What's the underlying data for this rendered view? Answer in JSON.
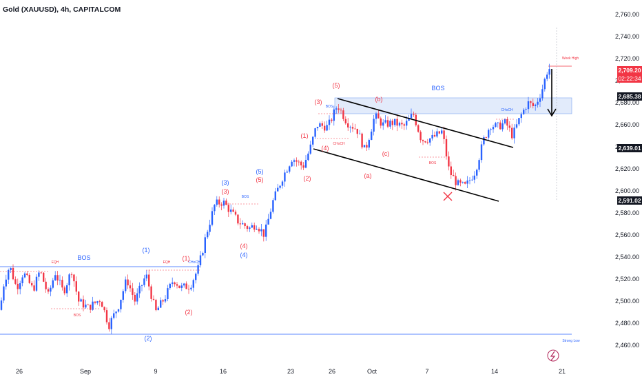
{
  "header": {
    "title": "Gold (XAUUSD), 4h, CAPITALCOM"
  },
  "colors": {
    "bull": "#2962ff",
    "bear": "#f23645",
    "line": "#000000",
    "zone": "#dbe7fb"
  },
  "price_tags": [
    {
      "label": "2,685.38",
      "value": 2685.38,
      "style": "dark"
    },
    {
      "label": "2,639.01",
      "value": 2639.01,
      "style": "dark"
    },
    {
      "label": "2,591.02",
      "value": 2591.02,
      "style": "dark"
    }
  ],
  "current_price": {
    "label": "2,709.20",
    "countdown": "02:22:34",
    "value": 2709.2
  },
  "annotations": {
    "bos": "BOS",
    "eqh": "EQH",
    "choch": "CHoCH",
    "week_high": "Week High",
    "strong_low": "Strong Low",
    "waves": {
      "one": "(1)",
      "two": "(2)",
      "three": "(3)",
      "four": "(4)",
      "five": "(5)",
      "a": "(a)",
      "b": "(b)",
      "c": "(c)"
    }
  },
  "chart_data": {
    "type": "candlestick",
    "title": "Gold (XAUUSD), 4h, CAPITALCOM",
    "ylim": [
      2450,
      2770
    ],
    "y_ticks": [
      "2,460.00",
      "2,480.00",
      "2,500.00",
      "2,520.00",
      "2,540.00",
      "2,560.00",
      "2,580.00",
      "2,600.00",
      "2,620.00",
      "2,640.00",
      "2,660.00",
      "2,680.00",
      "2,700.00",
      "2,720.00",
      "2,740.00",
      "2,760.00"
    ],
    "y_tick_values": [
      2460,
      2480,
      2500,
      2520,
      2540,
      2560,
      2580,
      2600,
      2620,
      2640,
      2660,
      2680,
      2700,
      2720,
      2740,
      2760
    ],
    "x_ticks": [
      "26",
      "Sep",
      "9",
      "16",
      "23",
      "26",
      "Oct",
      "7",
      "14",
      "21"
    ],
    "candle_path": [
      [
        0,
        2492
      ],
      [
        6,
        2518
      ],
      [
        14,
        2532
      ],
      [
        24,
        2512
      ],
      [
        34,
        2526
      ],
      [
        48,
        2510
      ],
      [
        58,
        2528
      ],
      [
        70,
        2505
      ],
      [
        80,
        2526
      ],
      [
        92,
        2508
      ],
      [
        104,
        2528
      ],
      [
        114,
        2500
      ],
      [
        128,
        2494
      ],
      [
        146,
        2502
      ],
      [
        158,
        2478
      ],
      [
        172,
        2496
      ],
      [
        184,
        2520
      ],
      [
        196,
        2500
      ],
      [
        212,
        2524
      ],
      [
        226,
        2490
      ],
      [
        240,
        2504
      ],
      [
        252,
        2520
      ],
      [
        262,
        2512
      ],
      [
        276,
        2514
      ],
      [
        288,
        2530
      ],
      [
        300,
        2562
      ],
      [
        312,
        2588
      ],
      [
        324,
        2590
      ],
      [
        334,
        2582
      ],
      [
        346,
        2572
      ],
      [
        362,
        2566
      ],
      [
        372,
        2570
      ],
      [
        384,
        2560
      ],
      [
        396,
        2590
      ],
      [
        410,
        2612
      ],
      [
        424,
        2630
      ],
      [
        440,
        2622
      ],
      [
        450,
        2638
      ],
      [
        460,
        2660
      ],
      [
        476,
        2658
      ],
      [
        490,
        2678
      ],
      [
        504,
        2662
      ],
      [
        518,
        2656
      ],
      [
        530,
        2636
      ],
      [
        544,
        2668
      ],
      [
        556,
        2660
      ],
      [
        572,
        2662
      ],
      [
        586,
        2658
      ],
      [
        600,
        2670
      ],
      [
        612,
        2646
      ],
      [
        628,
        2648
      ],
      [
        642,
        2654
      ],
      [
        652,
        2618
      ],
      [
        664,
        2606
      ],
      [
        676,
        2604
      ],
      [
        690,
        2618
      ],
      [
        702,
        2646
      ],
      [
        712,
        2660
      ],
      [
        722,
        2658
      ],
      [
        734,
        2662
      ],
      [
        744,
        2650
      ],
      [
        756,
        2668
      ],
      [
        766,
        2680
      ],
      [
        776,
        2676
      ],
      [
        786,
        2690
      ],
      [
        796,
        2712
      ],
      [
        800,
        2709
      ]
    ]
  }
}
